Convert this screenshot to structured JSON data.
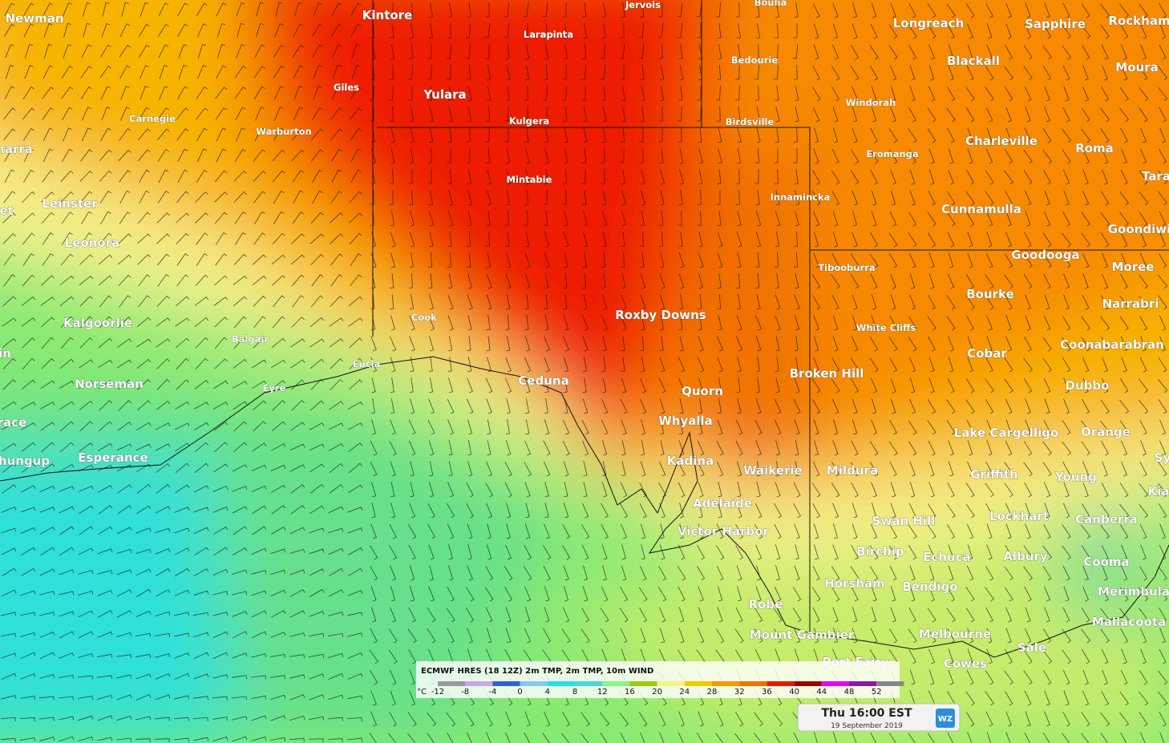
{
  "places": [
    {
      "name": "Newman"
    },
    {
      "name": "Kintore"
    },
    {
      "name": "Longreach"
    },
    {
      "name": "Sapphire"
    },
    {
      "name": "Rockham"
    },
    {
      "name": "Blackall"
    },
    {
      "name": "Moura"
    },
    {
      "name": "Yulara"
    },
    {
      "name": "Charleville"
    },
    {
      "name": "Roma"
    },
    {
      "name": "Tara"
    },
    {
      "name": "narra"
    },
    {
      "name": "Leinster"
    },
    {
      "name": "et"
    },
    {
      "name": "Cunnamulla"
    },
    {
      "name": "Goondiwi"
    },
    {
      "name": "Leonora"
    },
    {
      "name": "Goodooga"
    },
    {
      "name": "Moree"
    },
    {
      "name": "Bourke"
    },
    {
      "name": "Narrabri"
    },
    {
      "name": "Roxby Downs"
    },
    {
      "name": "Kalgoorlie"
    },
    {
      "name": "Coonabarabran"
    },
    {
      "name": "in"
    },
    {
      "name": "Cobar"
    },
    {
      "name": "Broken Hill"
    },
    {
      "name": "Ceduna"
    },
    {
      "name": "Norseman"
    },
    {
      "name": "Dubbo"
    },
    {
      "name": "Quorn"
    },
    {
      "name": "Whyalla"
    },
    {
      "name": "race"
    },
    {
      "name": "Lake Cargelligo"
    },
    {
      "name": "Orange"
    },
    {
      "name": "hungup"
    },
    {
      "name": "Esperance"
    },
    {
      "name": "Kadina"
    },
    {
      "name": "Sy"
    },
    {
      "name": "Waikerie"
    },
    {
      "name": "Mildura"
    },
    {
      "name": "Griffith"
    },
    {
      "name": "Young"
    },
    {
      "name": "Kia"
    },
    {
      "name": "Adelaide"
    },
    {
      "name": "Lockhart"
    },
    {
      "name": "Canberra"
    },
    {
      "name": "Swan Hill"
    },
    {
      "name": "Victor Harbor"
    },
    {
      "name": "Birchip"
    },
    {
      "name": "Echuca"
    },
    {
      "name": "Albury"
    },
    {
      "name": "Cooma"
    },
    {
      "name": "Horsham"
    },
    {
      "name": "Bendigo"
    },
    {
      "name": "Merimbula"
    },
    {
      "name": "Robe"
    },
    {
      "name": "Mallacoota"
    },
    {
      "name": "Mount Gambier"
    },
    {
      "name": "Melbourne"
    },
    {
      "name": "Sale"
    },
    {
      "name": "Port Fairy"
    },
    {
      "name": "Cowes"
    },
    {
      "name": "Jervois"
    },
    {
      "name": "Boulia"
    },
    {
      "name": "Larapinta"
    },
    {
      "name": "Bedourie"
    },
    {
      "name": "Giles"
    },
    {
      "name": "Windorah"
    },
    {
      "name": "Carnegie"
    },
    {
      "name": "Kulgera"
    },
    {
      "name": "Birdsville"
    },
    {
      "name": "Warburton"
    },
    {
      "name": "Eromanga"
    },
    {
      "name": "Mintabie"
    },
    {
      "name": "Innamincka"
    },
    {
      "name": "Tibooburra"
    },
    {
      "name": "Cook"
    },
    {
      "name": "White Cliffs"
    },
    {
      "name": "Balgair"
    },
    {
      "name": "Eucla"
    },
    {
      "name": "Eyre"
    }
  ],
  "legend": {
    "title": "ECMWF HRES (18 12Z) 2m TMP, 2m TMP, 10m WIND",
    "unit": "°C",
    "ticks": [
      -12,
      -8,
      -4,
      0,
      4,
      8,
      12,
      16,
      20,
      24,
      28,
      32,
      36,
      40,
      44,
      48,
      52
    ],
    "colors": [
      "#9a9a9a",
      "#c9a6ee",
      "#2f5fe0",
      "#8cc4f5",
      "#1ee3e3",
      "#4fd6d6",
      "#8ef08e",
      "#9ccc10",
      "#f4f48a",
      "#f5c800",
      "#f59a00",
      "#f07000",
      "#e81a00",
      "#a00000",
      "#f000f0",
      "#8a1aa0",
      "#888888"
    ]
  },
  "timestamp": {
    "time": "Thu 16:00 EST",
    "date": "19 September 2019"
  },
  "logo": "WZ"
}
